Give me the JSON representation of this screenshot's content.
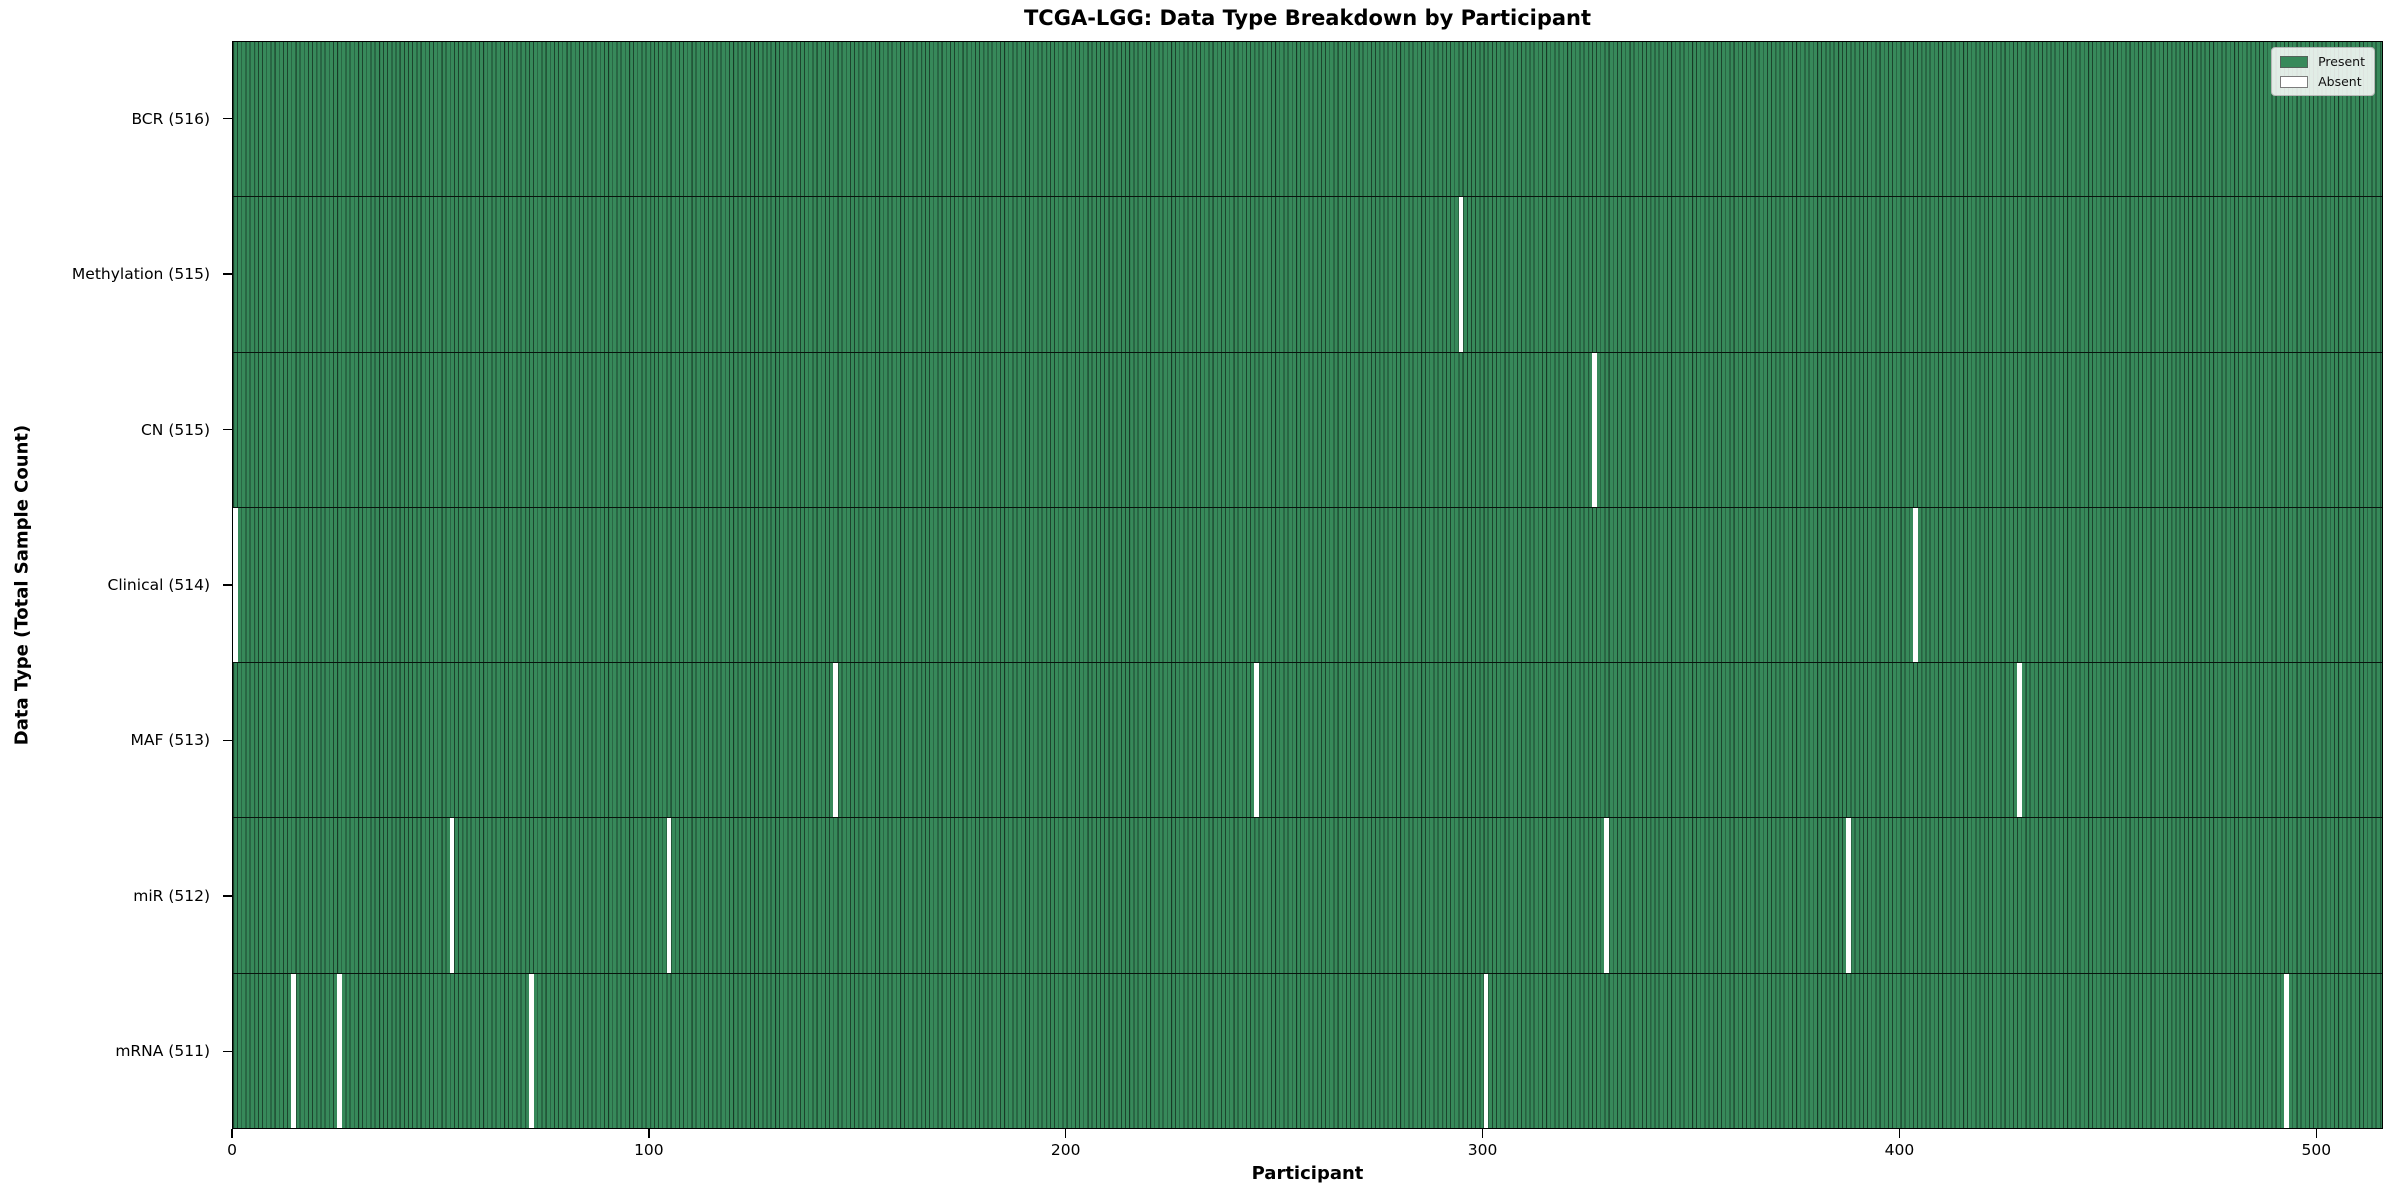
{
  "figure": {
    "title": "TCGA-LGG: Data Type Breakdown by Participant",
    "xlabel": "Participant",
    "ylabel": "Data Type (Total Sample Count)"
  },
  "legend": {
    "position": "upper right",
    "entries": [
      {
        "label": "Present",
        "color": "#37895A"
      },
      {
        "label": "Absent",
        "color": "#ffffff"
      }
    ]
  },
  "colors": {
    "present": "#37895A",
    "absent": "#ffffff",
    "cell_edge": "rgba(0,0,0,0.5)",
    "spine": "#000000",
    "background": "#ffffff"
  },
  "chart_data": {
    "type": "heatmap",
    "title": "TCGA-LGG: Data Type Breakdown by Participant",
    "xlabel": "Participant",
    "ylabel": "Data Type (Total Sample Count)",
    "legend": [
      "Present",
      "Absent"
    ],
    "legend_position": "upper right",
    "grid": false,
    "n_participants": 516,
    "x_axis": {
      "min": 0,
      "max": 516,
      "ticks": [
        0,
        100,
        200,
        300,
        400,
        500
      ]
    },
    "rows": [
      {
        "label": "BCR (516)",
        "data_type": "BCR",
        "total_samples": 516,
        "absent_participants": []
      },
      {
        "label": "Methylation (515)",
        "data_type": "Methylation",
        "total_samples": 515,
        "absent_participants": [
          294
        ]
      },
      {
        "label": "CN (515)",
        "data_type": "CN",
        "total_samples": 515,
        "absent_participants": [
          326
        ]
      },
      {
        "label": "Clinical (514)",
        "data_type": "Clinical",
        "total_samples": 514,
        "absent_participants": [
          0,
          403
        ]
      },
      {
        "label": "MAF (513)",
        "data_type": "MAF",
        "total_samples": 513,
        "absent_participants": [
          144,
          245,
          428
        ]
      },
      {
        "label": "miR (512)",
        "data_type": "miR",
        "total_samples": 512,
        "absent_participants": [
          52,
          104,
          329,
          387
        ]
      },
      {
        "label": "mRNA (511)",
        "data_type": "mRNA",
        "total_samples": 511,
        "absent_participants": [
          14,
          25,
          71,
          300,
          492
        ]
      }
    ]
  }
}
